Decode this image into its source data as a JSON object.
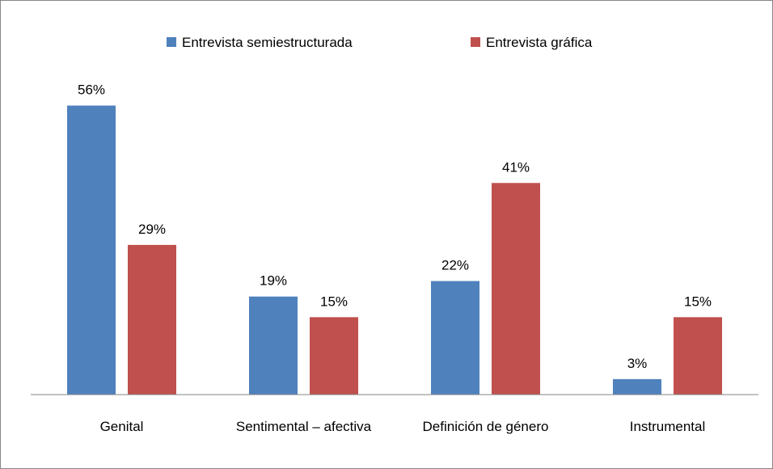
{
  "chart_data": {
    "type": "bar",
    "categories": [
      "Genital",
      "Sentimental – afectiva",
      "Definición de género",
      "Instrumental"
    ],
    "series": [
      {
        "name": "Entrevista semiestructurada",
        "color": "#4f81bd",
        "values": [
          56,
          19,
          22,
          3
        ],
        "value_labels": [
          "56%",
          "19%",
          "22%",
          "3%"
        ]
      },
      {
        "name": "Entrevista gráfica",
        "color": "#c0504d",
        "values": [
          29,
          15,
          41,
          15
        ],
        "value_labels": [
          "29%",
          "15%",
          "41%",
          "15%"
        ]
      }
    ],
    "ylim": [
      0,
      60
    ],
    "legend": "top"
  }
}
